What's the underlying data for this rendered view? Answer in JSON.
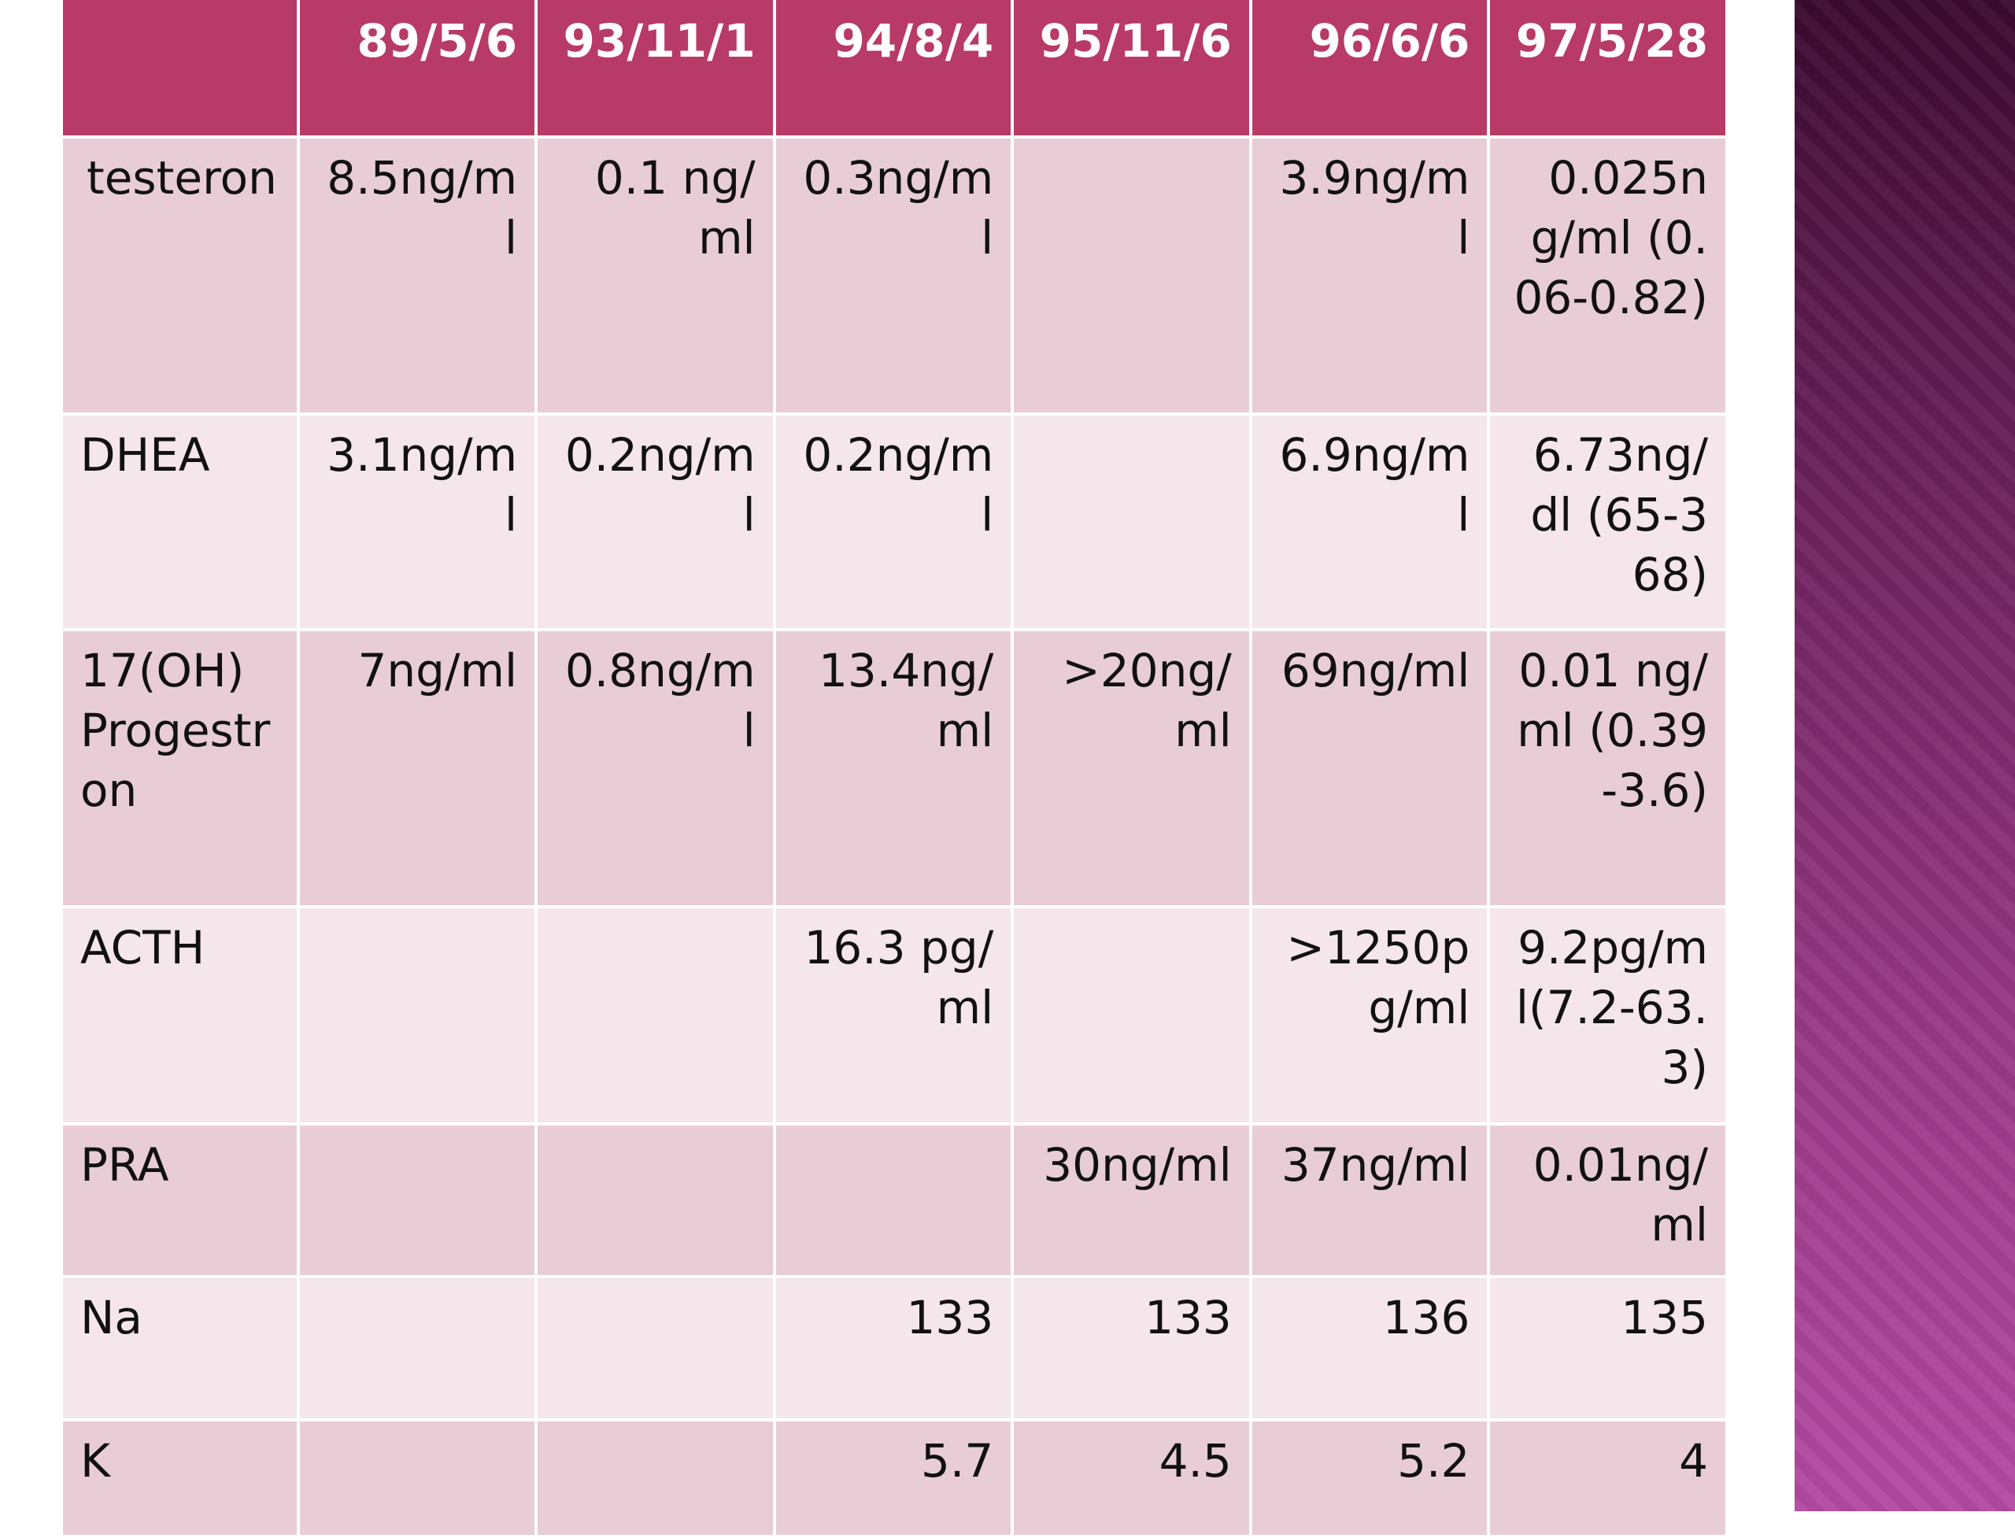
{
  "table": {
    "headers": [
      "",
      "89/5/6",
      "93/11/1",
      "94/8/4",
      "95/11/6",
      "96/6/6",
      "97/5/28"
    ],
    "rows": [
      {
        "label": "testeron",
        "cells": [
          "8.5ng/ml",
          "0.1 ng/ml",
          "0.3ng/ml",
          "",
          "3.9ng/ml",
          "0.025ng/ml (0.06-0.82)"
        ]
      },
      {
        "label": "DHEA",
        "cells": [
          "3.1ng/ml",
          "0.2ng/ml",
          "0.2ng/ml",
          "",
          "6.9ng/ml",
          "6.73ng/dl (65-368)"
        ]
      },
      {
        "label": "17(OH) Progestron",
        "cells": [
          "7ng/ml",
          "0.8ng/ml",
          "13.4ng/ml",
          ">20ng/ml",
          "69ng/ml",
          "0.01 ng/ml (0.39-3.6)"
        ]
      },
      {
        "label": "ACTH",
        "cells": [
          "",
          "",
          "16.3 pg/ml",
          "",
          ">1250pg/ml",
          "9.2pg/ml(7.2-63.3)"
        ]
      },
      {
        "label": "PRA",
        "cells": [
          "",
          "",
          "",
          "30ng/ml",
          "37ng/ml",
          "0.01ng/ml"
        ]
      },
      {
        "label": "Na",
        "cells": [
          "",
          "",
          "133",
          "133",
          "136",
          "135"
        ]
      },
      {
        "label": "K",
        "cells": [
          "",
          "",
          "5.7",
          "4.5",
          "5.2",
          "4"
        ]
      }
    ]
  },
  "colors": {
    "header_bg": "#b83a66",
    "row_odd_bg": "#e8cdd6",
    "row_even_bg": "#f4e6eb",
    "side_band_top": "#3a0a2e",
    "side_band_bottom": "#b44aa2"
  }
}
